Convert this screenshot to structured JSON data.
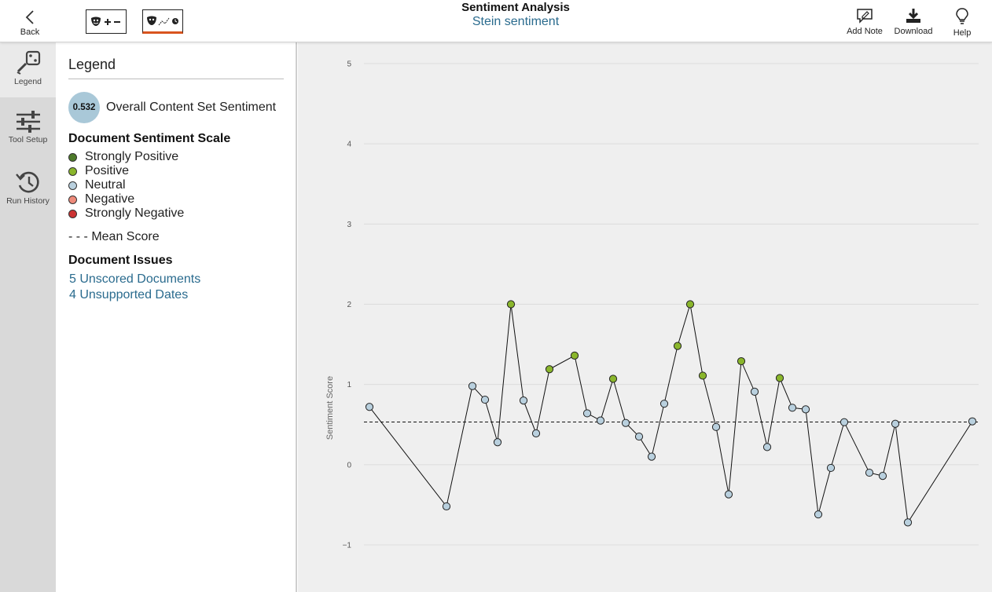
{
  "header": {
    "back_label": "Back",
    "title": "Sentiment Analysis",
    "subtitle": "Stein sentiment",
    "actions": {
      "add_note": "Add Note",
      "download": "Download",
      "help": "Help"
    }
  },
  "rail": {
    "items": [
      {
        "label": "Legend",
        "icon": "legend-icon"
      },
      {
        "label": "Tool Setup",
        "icon": "sliders-icon"
      },
      {
        "label": "Run History",
        "icon": "history-icon"
      }
    ]
  },
  "legend": {
    "title": "Legend",
    "overall_value": "0.532",
    "overall_label": "Overall Content Set Sentiment",
    "scale_heading": "Document Sentiment Scale",
    "scale": [
      {
        "label": "Strongly Positive",
        "color": "#4d7a2a"
      },
      {
        "label": "Positive",
        "color": "#8ab62c"
      },
      {
        "label": "Neutral",
        "color": "#b9d0de"
      },
      {
        "label": "Negative",
        "color": "#ee8a7a"
      },
      {
        "label": "Strongly Negative",
        "color": "#cc3333"
      }
    ],
    "mean_label": "- - - Mean Score",
    "issues_heading": "Document Issues",
    "issues": [
      "5 Unscored Documents",
      "4 Unsupported Dates"
    ]
  },
  "chart_data": {
    "type": "line",
    "ylabel": "Sentiment Score",
    "ylim": [
      -1,
      5
    ],
    "yticks": [
      5,
      4,
      3,
      2,
      1,
      0,
      -1
    ],
    "mean": 0.532,
    "grid": true,
    "point_colors": {
      "positive": "#8ab62c",
      "neutral": "#b9d0de"
    },
    "series": [
      {
        "values": [
          0.72,
          -0.52,
          0.98,
          0.81,
          0.28,
          2.0,
          0.8,
          0.39,
          1.19,
          1.36,
          0.64,
          0.55,
          1.07,
          0.52,
          0.35,
          0.1,
          0.76,
          1.48,
          2.0,
          1.11,
          0.47,
          -0.37,
          1.29,
          0.91,
          0.22,
          1.08,
          0.71,
          0.69,
          -0.62,
          -0.04,
          0.53,
          -0.1,
          -0.14,
          0.51,
          -0.72,
          0.54
        ],
        "classes": [
          "neutral",
          "neutral",
          "neutral",
          "neutral",
          "neutral",
          "positive",
          "neutral",
          "neutral",
          "positive",
          "positive",
          "neutral",
          "neutral",
          "positive",
          "neutral",
          "neutral",
          "neutral",
          "neutral",
          "positive",
          "positive",
          "positive",
          "neutral",
          "neutral",
          "positive",
          "neutral",
          "neutral",
          "positive",
          "neutral",
          "neutral",
          "neutral",
          "neutral",
          "neutral",
          "neutral",
          "neutral",
          "neutral",
          "neutral",
          "neutral"
        ]
      }
    ]
  }
}
